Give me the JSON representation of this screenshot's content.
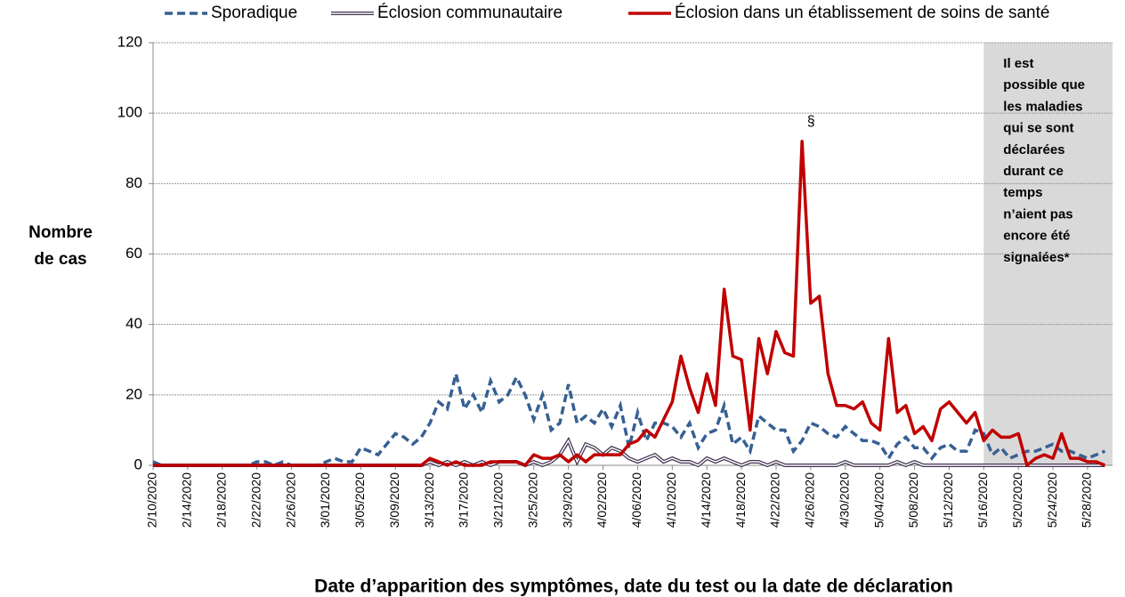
{
  "chart_data": {
    "type": "line",
    "xlabel": "Date d’apparition des symptômes, date du test ou la date de déclaration",
    "ylabel": [
      "Nombre",
      "de cas"
    ],
    "categories": [
      "2/10/2020",
      null,
      null,
      null,
      "2/14/2020",
      null,
      null,
      null,
      "2/18/2020",
      null,
      null,
      null,
      "2/22/2020",
      null,
      null,
      null,
      "2/26/2020",
      null,
      null,
      null,
      "3/01/2020",
      null,
      null,
      null,
      "3/05/2020",
      null,
      null,
      null,
      "3/09/2020",
      null,
      null,
      null,
      "3/13/2020",
      null,
      null,
      null,
      "3/17/2020",
      null,
      null,
      null,
      "3/21/2020",
      null,
      null,
      null,
      "3/25/2020",
      null,
      null,
      null,
      "3/29/2020",
      null,
      null,
      null,
      "4/02/2020",
      null,
      null,
      null,
      "4/06/2020",
      null,
      null,
      null,
      "4/10/2020",
      null,
      null,
      null,
      "4/14/2020",
      null,
      null,
      null,
      "4/18/2020",
      null,
      null,
      null,
      "4/22/2020",
      null,
      null,
      null,
      "4/26/2020",
      null,
      null,
      null,
      "4/30/2020",
      null,
      null,
      null,
      "5/04/2020",
      null,
      null,
      null,
      "5/08/2020",
      null,
      null,
      null,
      "5/12/2020",
      null,
      null,
      null,
      "5/16/2020",
      null,
      null,
      null,
      "5/20/2020",
      null,
      null,
      null,
      "5/24/2020",
      null,
      null,
      null,
      "5/28/2020",
      null,
      null
    ],
    "series": [
      {
        "name": "Sporadique",
        "color": "#376092",
        "style": "dashed",
        "values": [
          1,
          0,
          0,
          0,
          0,
          0,
          0,
          0,
          0,
          0,
          0,
          0,
          1,
          1,
          0,
          1,
          0,
          0,
          0,
          0,
          1,
          2,
          1,
          1,
          5,
          4,
          3,
          6,
          9,
          8,
          6,
          8,
          12,
          18,
          16,
          26,
          16,
          20,
          15,
          24,
          18,
          20,
          25,
          20,
          13,
          20,
          10,
          12,
          23,
          12,
          14,
          12,
          16,
          11,
          17,
          5,
          15,
          7,
          12,
          12,
          11,
          8,
          12,
          5,
          9,
          10,
          17,
          6,
          8,
          4,
          14,
          12,
          10,
          10,
          4,
          7,
          12,
          11,
          9,
          8,
          11,
          9,
          7,
          7,
          6,
          2,
          6,
          8,
          5,
          5,
          2,
          5,
          6,
          4,
          4,
          10,
          9,
          3,
          5,
          2,
          3,
          4,
          4,
          5,
          6,
          4,
          4,
          3,
          2,
          3,
          4
        ]
      },
      {
        "name": "Éclosion communautaire",
        "color": "#403151",
        "style": "double",
        "values": [
          0,
          0,
          0,
          0,
          0,
          0,
          0,
          0,
          0,
          0,
          0,
          0,
          0,
          0,
          0,
          0,
          0,
          0,
          0,
          0,
          0,
          0,
          0,
          0,
          0,
          0,
          0,
          0,
          0,
          0,
          0,
          0,
          1,
          0,
          1,
          0,
          1,
          0,
          1,
          0,
          1,
          1,
          1,
          0,
          1,
          0,
          1,
          3,
          7,
          1,
          6,
          5,
          3,
          5,
          4,
          2,
          1,
          2,
          3,
          1,
          2,
          1,
          1,
          0,
          2,
          1,
          2,
          1,
          0,
          1,
          1,
          0,
          1,
          0,
          0,
          0,
          0,
          0,
          0,
          0,
          1,
          0,
          0,
          0,
          0,
          0,
          1,
          0,
          1,
          0,
          0,
          0,
          0,
          0,
          0,
          0,
          0,
          0,
          0,
          0,
          0,
          0,
          0,
          0,
          0,
          0,
          0,
          0,
          0,
          0,
          0
        ]
      },
      {
        "name": "Éclosion dans un établissement de soins de santé",
        "color": "#c00000",
        "style": "solid",
        "values": [
          0,
          0,
          0,
          0,
          0,
          0,
          0,
          0,
          0,
          0,
          0,
          0,
          0,
          0,
          0,
          0,
          0,
          0,
          0,
          0,
          0,
          0,
          0,
          0,
          0,
          0,
          0,
          0,
          0,
          0,
          0,
          0,
          2,
          1,
          0,
          1,
          0,
          0,
          0,
          1,
          1,
          1,
          1,
          0,
          3,
          2,
          2,
          3,
          1,
          3,
          1,
          3,
          3,
          3,
          3,
          6,
          7,
          10,
          8,
          13,
          18,
          31,
          22,
          15,
          26,
          17,
          50,
          31,
          30,
          10,
          36,
          26,
          38,
          32,
          31,
          92,
          46,
          48,
          26,
          17,
          17,
          16,
          18,
          12,
          10,
          36,
          15,
          17,
          9,
          11,
          7,
          16,
          18,
          15,
          12,
          15,
          7,
          10,
          8,
          8,
          9,
          0,
          2,
          3,
          2,
          9,
          2,
          2,
          1,
          1,
          0
        ]
      }
    ],
    "ylim": [
      0,
      120
    ],
    "yticks": [
      0,
      20,
      40,
      60,
      80,
      100,
      120
    ],
    "grid": true,
    "legend": "top",
    "annotation": "§",
    "shaded_region": {
      "from": "5/16/2020",
      "color": "#d9d9d9",
      "lines": [
        "Il est",
        "possible que",
        "les maladies",
        "qui se sont",
        "déclarées",
        "durant ce",
        "temps",
        "n’aient pas",
        "encore été",
        "signalées*"
      ]
    }
  }
}
